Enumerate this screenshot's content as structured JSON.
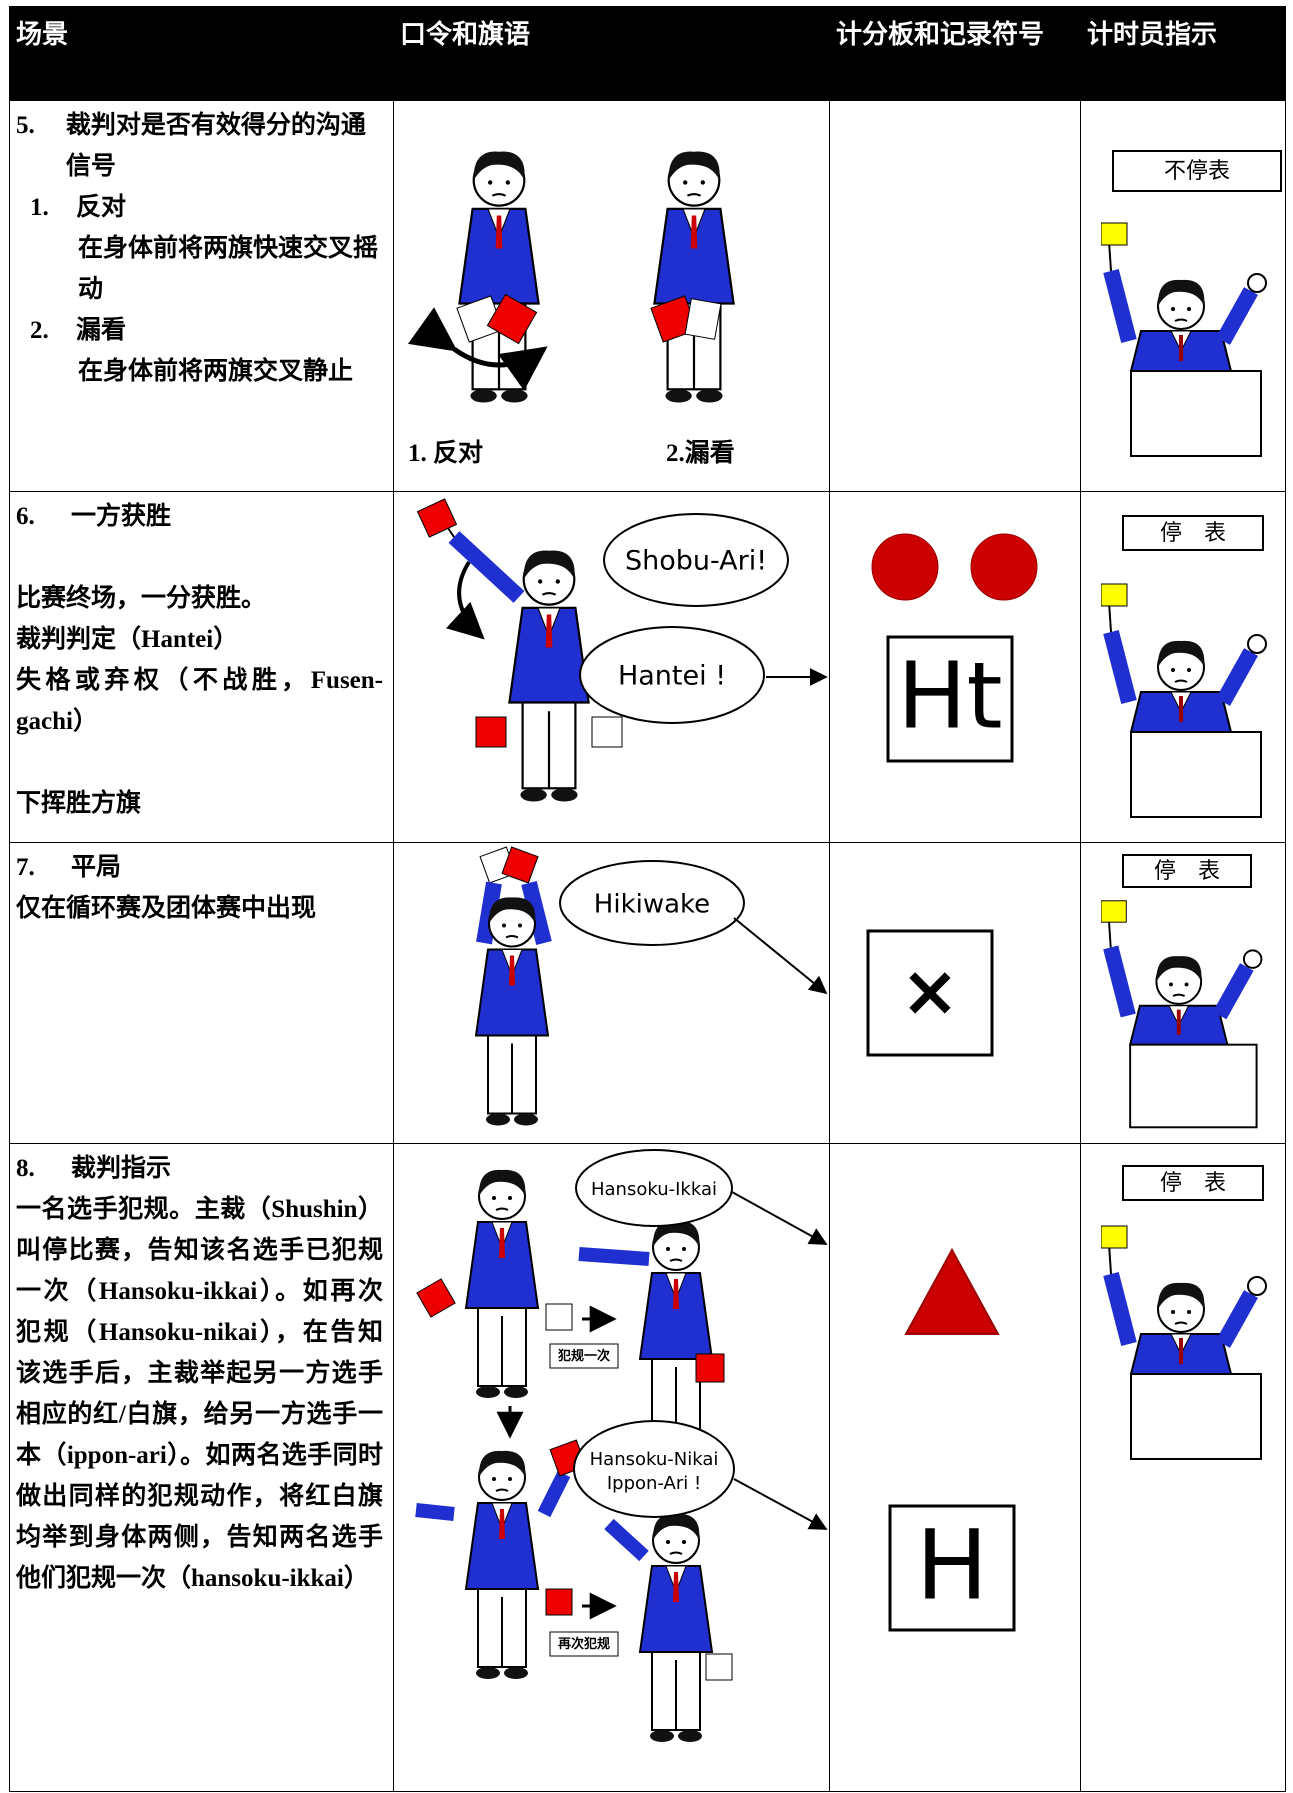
{
  "header": {
    "columns": [
      "场景",
      "口令和旗语",
      "计分板和记录符号",
      "计时员指示"
    ]
  },
  "rows": [
    {
      "number": "5.",
      "title": "裁判对是否有效得分的沟通信号",
      "items": [
        {
          "number": "1.",
          "title": "反对",
          "text": "在身体前将两旗快速交叉摇动"
        },
        {
          "number": "2.",
          "title": "漏看",
          "text": "在身体前将两旗交叉静止"
        }
      ],
      "captions": [
        "1. 反对",
        "2.漏看"
      ],
      "timer": "不停表"
    },
    {
      "number": "6.",
      "title": "一方获胜",
      "paragraphs": [
        "比赛终场，一分获胜。",
        "裁判判定（Hantei）",
        "失格或弃权（不战胜，Fusen-gachi）",
        "下挥胜方旗"
      ],
      "calls": [
        "Shobu-Ari!",
        "Hantei !"
      ],
      "score": "Ht",
      "timer": "停　表"
    },
    {
      "number": "7.",
      "title": "平局",
      "paragraphs": [
        "仅在循环赛及团体赛中出现"
      ],
      "calls": [
        "Hikiwake"
      ],
      "score": "×",
      "timer": "停　表"
    },
    {
      "number": "8.",
      "title": "裁判指示",
      "paragraphs": [
        "一名选手犯规。主裁（Shushin）叫停比赛，告知该名选手已犯规一次（Hansoku-ikkai）。如再次犯规（Hansoku-nikai），在告知该选手后，主裁举起另一方选手相应的红/白旗，给另一方选手一本（ippon-ari）。如两名选手同时做出同样的犯规动作，将红白旗均举到身体两侧，告知两名选手他们犯规一次（hansoku-ikkai）"
      ],
      "calls": [
        "Hansoku-Ikkai",
        [
          "Hansoku-Nikai",
          "Ippon-Ari !"
        ]
      ],
      "labels": [
        "犯规一次",
        "再次犯规"
      ],
      "score": "H",
      "timer": "停　表"
    }
  ]
}
